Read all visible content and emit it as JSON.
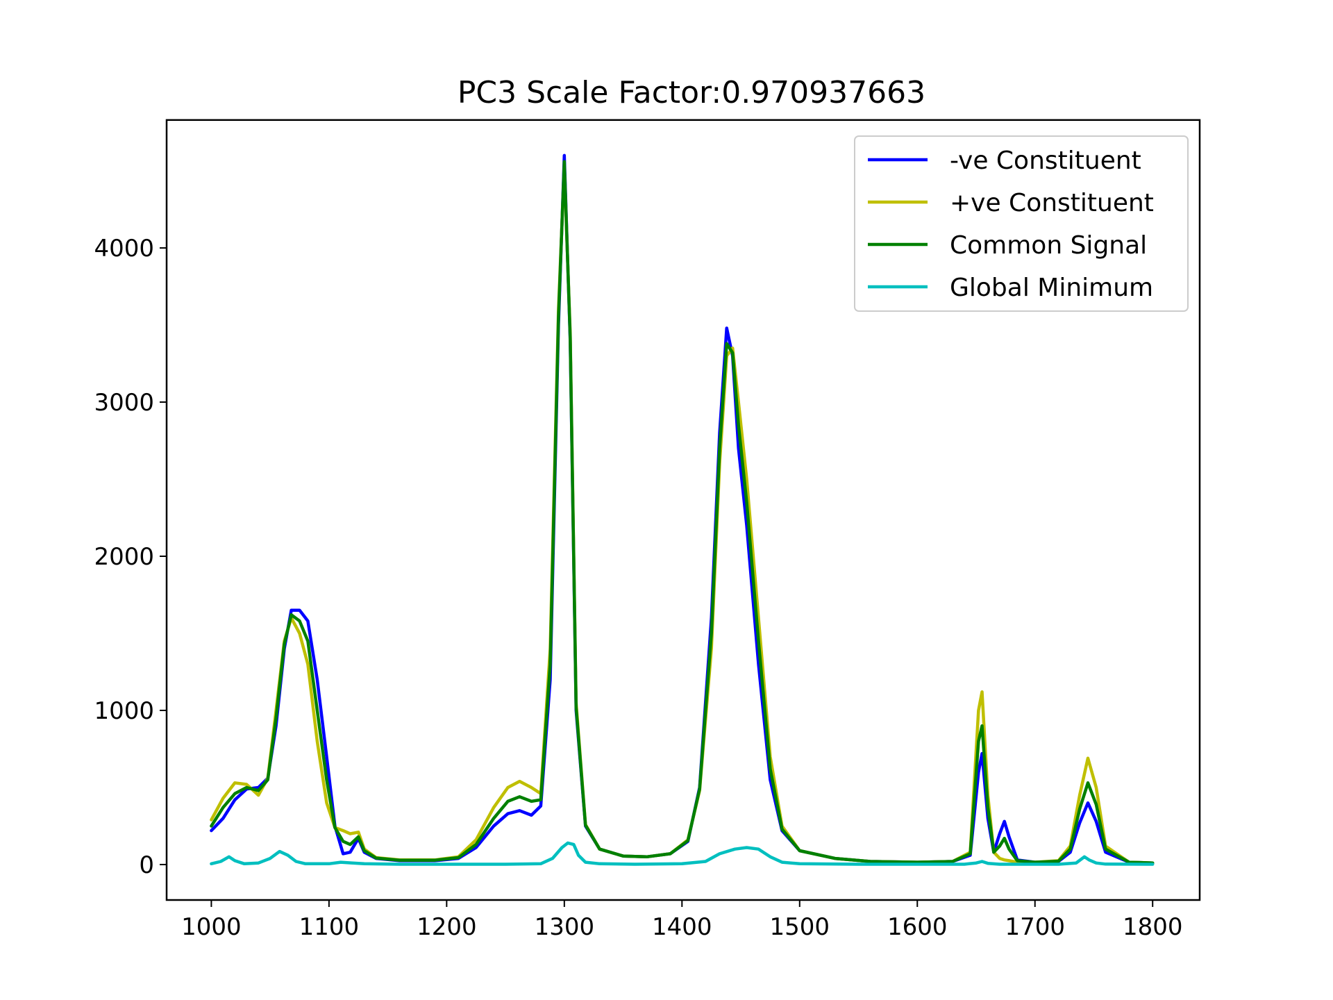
{
  "chart_data": {
    "type": "line",
    "title": "PC3 Scale Factor:0.970937663",
    "xlabel": "",
    "ylabel": "",
    "xlim": [
      962,
      1840
    ],
    "ylim": [
      -230,
      4830
    ],
    "xticks": [
      1000,
      1100,
      1200,
      1300,
      1400,
      1500,
      1600,
      1700,
      1800
    ],
    "yticks": [
      0,
      1000,
      2000,
      3000,
      4000
    ],
    "grid": false,
    "legend_position": "top-right",
    "series": [
      {
        "name": "-ve Constituent",
        "color": "#0000ff",
        "points": [
          [
            1000,
            220
          ],
          [
            1010,
            300
          ],
          [
            1020,
            420
          ],
          [
            1030,
            490
          ],
          [
            1040,
            500
          ],
          [
            1048,
            560
          ],
          [
            1055,
            900
          ],
          [
            1062,
            1400
          ],
          [
            1068,
            1650
          ],
          [
            1075,
            1650
          ],
          [
            1082,
            1580
          ],
          [
            1090,
            1200
          ],
          [
            1098,
            700
          ],
          [
            1105,
            250
          ],
          [
            1112,
            70
          ],
          [
            1118,
            80
          ],
          [
            1125,
            170
          ],
          [
            1130,
            80
          ],
          [
            1140,
            40
          ],
          [
            1160,
            25
          ],
          [
            1190,
            25
          ],
          [
            1210,
            40
          ],
          [
            1225,
            110
          ],
          [
            1240,
            250
          ],
          [
            1252,
            330
          ],
          [
            1262,
            350
          ],
          [
            1272,
            320
          ],
          [
            1280,
            380
          ],
          [
            1288,
            1200
          ],
          [
            1295,
            3500
          ],
          [
            1300,
            4600
          ],
          [
            1305,
            3400
          ],
          [
            1310,
            1000
          ],
          [
            1318,
            250
          ],
          [
            1330,
            100
          ],
          [
            1350,
            55
          ],
          [
            1370,
            50
          ],
          [
            1390,
            70
          ],
          [
            1405,
            150
          ],
          [
            1415,
            500
          ],
          [
            1425,
            1600
          ],
          [
            1432,
            2800
          ],
          [
            1438,
            3480
          ],
          [
            1443,
            3300
          ],
          [
            1448,
            2700
          ],
          [
            1455,
            2200
          ],
          [
            1465,
            1300
          ],
          [
            1475,
            550
          ],
          [
            1485,
            220
          ],
          [
            1500,
            90
          ],
          [
            1530,
            40
          ],
          [
            1560,
            20
          ],
          [
            1600,
            15
          ],
          [
            1630,
            20
          ],
          [
            1645,
            60
          ],
          [
            1652,
            600
          ],
          [
            1655,
            720
          ],
          [
            1660,
            300
          ],
          [
            1665,
            80
          ],
          [
            1670,
            200
          ],
          [
            1674,
            280
          ],
          [
            1678,
            180
          ],
          [
            1685,
            30
          ],
          [
            1700,
            15
          ],
          [
            1720,
            20
          ],
          [
            1730,
            80
          ],
          [
            1738,
            270
          ],
          [
            1745,
            400
          ],
          [
            1752,
            280
          ],
          [
            1760,
            80
          ],
          [
            1780,
            15
          ],
          [
            1800,
            10
          ]
        ]
      },
      {
        "name": "+ve Constituent",
        "color": "#bfbf00",
        "points": [
          [
            1000,
            290
          ],
          [
            1010,
            430
          ],
          [
            1020,
            530
          ],
          [
            1030,
            520
          ],
          [
            1040,
            450
          ],
          [
            1048,
            560
          ],
          [
            1055,
            1000
          ],
          [
            1062,
            1450
          ],
          [
            1068,
            1600
          ],
          [
            1075,
            1500
          ],
          [
            1082,
            1300
          ],
          [
            1090,
            800
          ],
          [
            1098,
            400
          ],
          [
            1105,
            240
          ],
          [
            1112,
            220
          ],
          [
            1118,
            200
          ],
          [
            1125,
            210
          ],
          [
            1130,
            100
          ],
          [
            1140,
            45
          ],
          [
            1160,
            30
          ],
          [
            1190,
            30
          ],
          [
            1210,
            50
          ],
          [
            1225,
            160
          ],
          [
            1240,
            370
          ],
          [
            1252,
            500
          ],
          [
            1262,
            540
          ],
          [
            1272,
            500
          ],
          [
            1280,
            460
          ],
          [
            1288,
            1400
          ],
          [
            1295,
            3600
          ],
          [
            1300,
            4530
          ],
          [
            1305,
            3450
          ],
          [
            1310,
            1050
          ],
          [
            1318,
            260
          ],
          [
            1330,
            100
          ],
          [
            1350,
            55
          ],
          [
            1370,
            50
          ],
          [
            1390,
            70
          ],
          [
            1405,
            160
          ],
          [
            1415,
            480
          ],
          [
            1425,
            1400
          ],
          [
            1432,
            2600
          ],
          [
            1438,
            3300
          ],
          [
            1443,
            3350
          ],
          [
            1448,
            3000
          ],
          [
            1455,
            2500
          ],
          [
            1465,
            1600
          ],
          [
            1475,
            700
          ],
          [
            1485,
            250
          ],
          [
            1500,
            90
          ],
          [
            1530,
            40
          ],
          [
            1560,
            20
          ],
          [
            1600,
            15
          ],
          [
            1630,
            20
          ],
          [
            1645,
            80
          ],
          [
            1652,
            1000
          ],
          [
            1655,
            1120
          ],
          [
            1660,
            450
          ],
          [
            1665,
            80
          ],
          [
            1670,
            40
          ],
          [
            1674,
            30
          ],
          [
            1678,
            25
          ],
          [
            1685,
            15
          ],
          [
            1700,
            15
          ],
          [
            1720,
            25
          ],
          [
            1730,
            120
          ],
          [
            1738,
            450
          ],
          [
            1745,
            690
          ],
          [
            1752,
            500
          ],
          [
            1760,
            120
          ],
          [
            1780,
            15
          ],
          [
            1800,
            10
          ]
        ]
      },
      {
        "name": "Common Signal",
        "color": "#008000",
        "points": [
          [
            1000,
            250
          ],
          [
            1010,
            370
          ],
          [
            1020,
            460
          ],
          [
            1030,
            500
          ],
          [
            1040,
            480
          ],
          [
            1048,
            550
          ],
          [
            1055,
            950
          ],
          [
            1062,
            1430
          ],
          [
            1068,
            1620
          ],
          [
            1075,
            1580
          ],
          [
            1082,
            1450
          ],
          [
            1090,
            1000
          ],
          [
            1098,
            550
          ],
          [
            1105,
            240
          ],
          [
            1112,
            150
          ],
          [
            1118,
            130
          ],
          [
            1125,
            180
          ],
          [
            1130,
            90
          ],
          [
            1140,
            42
          ],
          [
            1160,
            28
          ],
          [
            1190,
            28
          ],
          [
            1210,
            45
          ],
          [
            1225,
            130
          ],
          [
            1240,
            300
          ],
          [
            1252,
            410
          ],
          [
            1262,
            440
          ],
          [
            1272,
            410
          ],
          [
            1280,
            420
          ],
          [
            1288,
            1300
          ],
          [
            1295,
            3550
          ],
          [
            1300,
            4560
          ],
          [
            1305,
            3420
          ],
          [
            1310,
            1020
          ],
          [
            1318,
            255
          ],
          [
            1330,
            100
          ],
          [
            1350,
            55
          ],
          [
            1370,
            50
          ],
          [
            1390,
            70
          ],
          [
            1405,
            155
          ],
          [
            1415,
            490
          ],
          [
            1425,
            1500
          ],
          [
            1432,
            2700
          ],
          [
            1438,
            3380
          ],
          [
            1443,
            3320
          ],
          [
            1448,
            2850
          ],
          [
            1455,
            2350
          ],
          [
            1465,
            1450
          ],
          [
            1475,
            620
          ],
          [
            1485,
            230
          ],
          [
            1500,
            90
          ],
          [
            1530,
            40
          ],
          [
            1560,
            20
          ],
          [
            1600,
            15
          ],
          [
            1630,
            20
          ],
          [
            1645,
            70
          ],
          [
            1652,
            800
          ],
          [
            1655,
            900
          ],
          [
            1660,
            370
          ],
          [
            1665,
            80
          ],
          [
            1670,
            120
          ],
          [
            1674,
            170
          ],
          [
            1678,
            100
          ],
          [
            1685,
            25
          ],
          [
            1700,
            15
          ],
          [
            1720,
            22
          ],
          [
            1730,
            100
          ],
          [
            1738,
            360
          ],
          [
            1745,
            530
          ],
          [
            1752,
            390
          ],
          [
            1760,
            100
          ],
          [
            1780,
            15
          ],
          [
            1800,
            10
          ]
        ]
      },
      {
        "name": "Global Minimum",
        "color": "#00bfbf",
        "points": [
          [
            1000,
            5
          ],
          [
            1008,
            20
          ],
          [
            1015,
            50
          ],
          [
            1020,
            25
          ],
          [
            1028,
            5
          ],
          [
            1040,
            10
          ],
          [
            1050,
            40
          ],
          [
            1058,
            85
          ],
          [
            1065,
            60
          ],
          [
            1072,
            20
          ],
          [
            1080,
            5
          ],
          [
            1100,
            5
          ],
          [
            1110,
            15
          ],
          [
            1120,
            10
          ],
          [
            1130,
            5
          ],
          [
            1160,
            2
          ],
          [
            1200,
            2
          ],
          [
            1250,
            2
          ],
          [
            1280,
            5
          ],
          [
            1290,
            40
          ],
          [
            1298,
            110
          ],
          [
            1303,
            140
          ],
          [
            1308,
            130
          ],
          [
            1312,
            60
          ],
          [
            1318,
            15
          ],
          [
            1330,
            5
          ],
          [
            1360,
            2
          ],
          [
            1400,
            5
          ],
          [
            1420,
            20
          ],
          [
            1432,
            70
          ],
          [
            1445,
            100
          ],
          [
            1455,
            110
          ],
          [
            1465,
            100
          ],
          [
            1475,
            50
          ],
          [
            1485,
            15
          ],
          [
            1500,
            5
          ],
          [
            1550,
            2
          ],
          [
            1600,
            2
          ],
          [
            1640,
            2
          ],
          [
            1650,
            10
          ],
          [
            1655,
            20
          ],
          [
            1660,
            8
          ],
          [
            1670,
            2
          ],
          [
            1720,
            2
          ],
          [
            1735,
            10
          ],
          [
            1742,
            50
          ],
          [
            1746,
            30
          ],
          [
            1752,
            10
          ],
          [
            1760,
            3
          ],
          [
            1800,
            2
          ]
        ]
      }
    ]
  }
}
